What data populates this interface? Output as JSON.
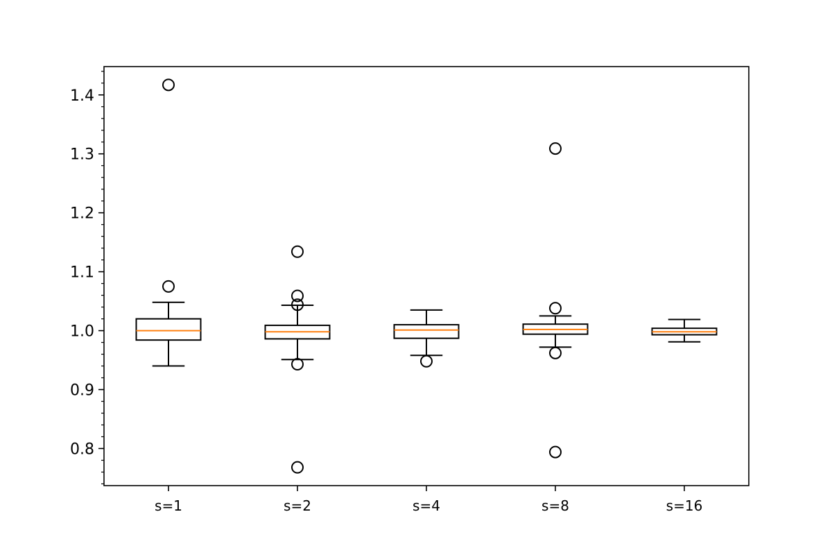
{
  "chart_data": {
    "type": "boxplot",
    "title": "",
    "xlabel": "",
    "ylabel": "",
    "ylim": [
      0.737,
      1.448
    ],
    "yticks": [
      0.8,
      0.9,
      1.0,
      1.1,
      1.2,
      1.3,
      1.4
    ],
    "yticklabels": [
      "0.8",
      "0.9",
      "1.0",
      "1.1",
      "1.2",
      "1.3",
      "1.4"
    ],
    "grid": false,
    "categories": [
      "s=1",
      "s=2",
      "s=4",
      "s=8",
      "s=16"
    ],
    "boxes": [
      {
        "label": "s=1",
        "whisker_low": 0.94,
        "q1": 0.984,
        "median": 1.0,
        "q3": 1.02,
        "whisker_high": 1.048,
        "outliers": [
          1.417,
          1.075
        ]
      },
      {
        "label": "s=2",
        "whisker_low": 0.951,
        "q1": 0.986,
        "median": 0.998,
        "q3": 1.009,
        "whisker_high": 1.043,
        "outliers": [
          1.134,
          1.059,
          1.044,
          0.943,
          0.768
        ]
      },
      {
        "label": "s=4",
        "whisker_low": 0.958,
        "q1": 0.987,
        "median": 1.001,
        "q3": 1.01,
        "whisker_high": 1.035,
        "outliers": [
          0.948
        ]
      },
      {
        "label": "s=8",
        "whisker_low": 0.972,
        "q1": 0.994,
        "median": 1.002,
        "q3": 1.011,
        "whisker_high": 1.025,
        "outliers": [
          1.309,
          1.038,
          0.962,
          0.794
        ]
      },
      {
        "label": "s=16",
        "whisker_low": 0.981,
        "q1": 0.993,
        "median": 0.998,
        "q3": 1.004,
        "whisker_high": 1.019,
        "outliers": []
      }
    ],
    "colors": {
      "box": "#000000",
      "median": "#ff7f0e",
      "outlier": "#000000"
    }
  }
}
